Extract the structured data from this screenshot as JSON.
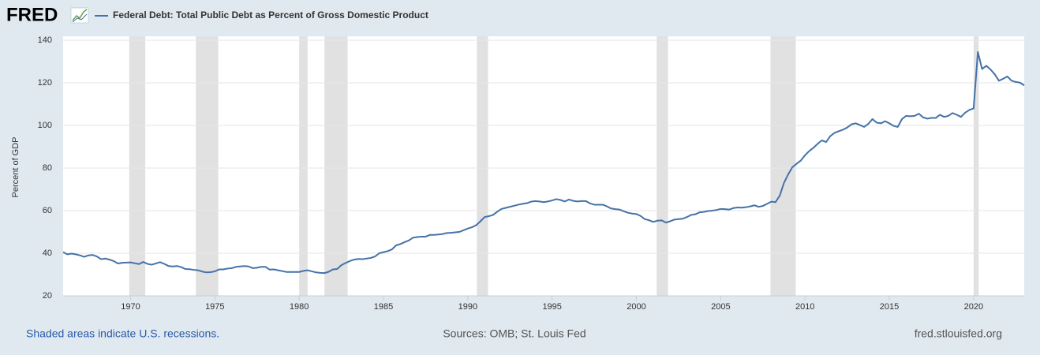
{
  "logo": "FRED",
  "footer": {
    "note": "Shaded areas indicate U.S. recessions.",
    "sources": "Sources: OMB; St. Louis Fed",
    "site": "fred.stlouisfed.org"
  },
  "chart_data": {
    "type": "line",
    "y_label": "Percent of GDP",
    "xlim": [
      1966,
      2023
    ],
    "xticks": [
      1970,
      1975,
      1980,
      1985,
      1990,
      1995,
      2000,
      2005,
      2010,
      2015,
      2020
    ],
    "ylim": [
      20,
      140
    ],
    "yticks": [
      20,
      40,
      60,
      80,
      100,
      120,
      140
    ],
    "grid": true,
    "recession_color": "#e1e1e1",
    "recessions": [
      [
        1969.92,
        1970.87
      ],
      [
        1973.87,
        1975.2
      ],
      [
        1980.0,
        1980.5
      ],
      [
        1981.5,
        1982.87
      ],
      [
        1990.54,
        1991.2
      ],
      [
        2001.2,
        2001.87
      ],
      [
        2007.95,
        2009.45
      ],
      [
        2020.0,
        2020.3
      ]
    ],
    "x": [
      1966,
      1966.25,
      1966.5,
      1966.75,
      1967,
      1967.25,
      1967.5,
      1967.75,
      1968,
      1968.25,
      1968.5,
      1968.75,
      1969,
      1969.25,
      1969.5,
      1969.75,
      1970,
      1970.25,
      1970.5,
      1970.75,
      1971,
      1971.25,
      1971.5,
      1971.75,
      1972,
      1972.25,
      1972.5,
      1972.75,
      1973,
      1973.25,
      1973.5,
      1973.75,
      1974,
      1974.25,
      1974.5,
      1974.75,
      1975,
      1975.25,
      1975.5,
      1975.75,
      1976,
      1976.25,
      1976.5,
      1976.75,
      1977,
      1977.25,
      1977.5,
      1977.75,
      1978,
      1978.25,
      1978.5,
      1978.75,
      1979,
      1979.25,
      1979.5,
      1979.75,
      1980,
      1980.25,
      1980.5,
      1980.75,
      1981,
      1981.25,
      1981.5,
      1981.75,
      1982,
      1982.25,
      1982.5,
      1982.75,
      1983,
      1983.25,
      1983.5,
      1983.75,
      1984,
      1984.25,
      1984.5,
      1984.75,
      1985,
      1985.25,
      1985.5,
      1985.75,
      1986,
      1986.25,
      1986.5,
      1986.75,
      1987,
      1987.25,
      1987.5,
      1987.75,
      1988,
      1988.25,
      1988.5,
      1988.75,
      1989,
      1989.25,
      1989.5,
      1989.75,
      1990,
      1990.25,
      1990.5,
      1990.75,
      1991,
      1991.25,
      1991.5,
      1991.75,
      1992,
      1992.25,
      1992.5,
      1992.75,
      1993,
      1993.25,
      1993.5,
      1993.75,
      1994,
      1994.25,
      1994.5,
      1994.75,
      1995,
      1995.25,
      1995.5,
      1995.75,
      1996,
      1996.25,
      1996.5,
      1996.75,
      1997,
      1997.25,
      1997.5,
      1997.75,
      1998,
      1998.25,
      1998.5,
      1998.75,
      1999,
      1999.25,
      1999.5,
      1999.75,
      2000,
      2000.25,
      2000.5,
      2000.75,
      2001,
      2001.25,
      2001.5,
      2001.75,
      2002,
      2002.25,
      2002.5,
      2002.75,
      2003,
      2003.25,
      2003.5,
      2003.75,
      2004,
      2004.25,
      2004.5,
      2004.75,
      2005,
      2005.25,
      2005.5,
      2005.75,
      2006,
      2006.25,
      2006.5,
      2006.75,
      2007,
      2007.25,
      2007.5,
      2007.75,
      2008,
      2008.25,
      2008.5,
      2008.75,
      2009,
      2009.25,
      2009.5,
      2009.75,
      2010,
      2010.25,
      2010.5,
      2010.75,
      2011,
      2011.25,
      2011.5,
      2011.75,
      2012,
      2012.25,
      2012.5,
      2012.75,
      2013,
      2013.25,
      2013.5,
      2013.75,
      2014,
      2014.25,
      2014.5,
      2014.75,
      2015,
      2015.25,
      2015.5,
      2015.75,
      2016,
      2016.25,
      2016.5,
      2016.75,
      2017,
      2017.25,
      2017.5,
      2017.75,
      2018,
      2018.25,
      2018.5,
      2018.75,
      2019,
      2019.25,
      2019.5,
      2019.75,
      2020,
      2020.25,
      2020.5,
      2020.75,
      2021,
      2021.25,
      2021.5,
      2021.75,
      2022,
      2022.25,
      2022.5,
      2022.75,
      2023
    ],
    "series": [
      {
        "name": "Federal Debt: Total Public Debt as Percent of Gross Domestic Product",
        "color": "#4572a7",
        "values": [
          40.5,
          39.5,
          39.8,
          39.5,
          39.0,
          38.3,
          39.0,
          39.2,
          38.5,
          37.2,
          37.5,
          37.0,
          36.3,
          35.2,
          35.5,
          35.6,
          35.7,
          35.3,
          34.9,
          35.9,
          35.0,
          34.6,
          35.2,
          35.8,
          35.0,
          34.0,
          33.8,
          34.0,
          33.5,
          32.6,
          32.5,
          32.2,
          32.0,
          31.4,
          31.0,
          31.1,
          31.5,
          32.4,
          32.4,
          32.8,
          33.0,
          33.6,
          33.8,
          34.0,
          33.8,
          33.0,
          33.2,
          33.6,
          33.6,
          32.3,
          32.4,
          32.0,
          31.6,
          31.2,
          31.2,
          31.2,
          31.2,
          31.7,
          32.0,
          31.5,
          31.0,
          30.8,
          30.7,
          31.3,
          32.4,
          32.6,
          34.4,
          35.4,
          36.3,
          37.0,
          37.3,
          37.2,
          37.5,
          37.8,
          38.5,
          40.0,
          40.5,
          41.0,
          41.8,
          43.7,
          44.3,
          45.2,
          46.0,
          47.3,
          47.6,
          47.8,
          47.8,
          48.6,
          48.6,
          48.8,
          49.0,
          49.5,
          49.6,
          49.8,
          50.0,
          50.8,
          51.6,
          52.2,
          53.2,
          55.0,
          57.0,
          57.4,
          58.0,
          59.5,
          60.8,
          61.3,
          61.8,
          62.3,
          62.8,
          63.2,
          63.5,
          64.2,
          64.5,
          64.3,
          64.0,
          64.3,
          64.8,
          65.4,
          65.0,
          64.3,
          65.2,
          64.6,
          64.3,
          64.5,
          64.5,
          63.4,
          62.8,
          62.8,
          62.8,
          62.0,
          61.0,
          60.7,
          60.5,
          59.7,
          59.0,
          58.6,
          58.4,
          57.5,
          56.0,
          55.5,
          54.7,
          55.3,
          55.4,
          54.4,
          55.0,
          55.8,
          56.0,
          56.2,
          57.0,
          58.0,
          58.3,
          59.2,
          59.4,
          59.8,
          60.0,
          60.3,
          60.8,
          60.7,
          60.5,
          61.2,
          61.5,
          61.4,
          61.6,
          62.0,
          62.5,
          61.8,
          62.2,
          63.2,
          64.2,
          64.0,
          67.0,
          73.0,
          77.0,
          80.4,
          82.0,
          83.5,
          86.0,
          88.0,
          89.5,
          91.4,
          93.0,
          92.2,
          95.0,
          96.5,
          97.3,
          98.0,
          99.0,
          100.5,
          101.0,
          100.2,
          99.3,
          100.7,
          103.0,
          101.3,
          101.0,
          102.0,
          101.0,
          99.8,
          99.3,
          103.0,
          104.5,
          104.3,
          104.5,
          105.5,
          103.8,
          103.2,
          103.5,
          103.5,
          105.0,
          104.0,
          104.5,
          105.8,
          105.0,
          104.0,
          106.0,
          107.3,
          108.0,
          134.5,
          126.5,
          128.0,
          126.3,
          124.0,
          121.0,
          121.9,
          123.0,
          121.0,
          120.4,
          120.1,
          118.8
        ]
      }
    ]
  }
}
